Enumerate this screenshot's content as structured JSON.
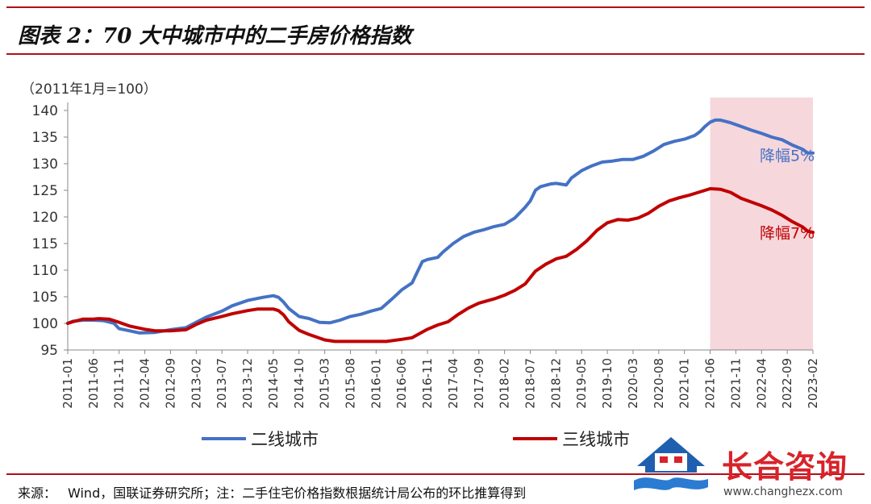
{
  "header": {
    "title": "图表 2：70 大中城市中的二手房价格指数",
    "unit_label": "（2011年1月=100）"
  },
  "footer": {
    "source_label": "来源：",
    "source_text": "Wind，国联证券研究所；注：二手住宅价格指数根据统计局公布的环比推算得到"
  },
  "watermark": {
    "brand": "长合咨询",
    "url": "www.changhezx.com",
    "icon": "house-handshake-icon"
  },
  "chart_data": {
    "type": "line",
    "title": "",
    "xlabel": "",
    "ylabel": "（2011年1月=100）",
    "ylim": [
      95,
      140
    ],
    "yticks": [
      95,
      100,
      105,
      110,
      115,
      120,
      125,
      130,
      135,
      140
    ],
    "x_start": "2011-01",
    "x_end": "2023-02",
    "x_ticks": [
      "2011-01",
      "2011-06",
      "2011-11",
      "2012-04",
      "2012-09",
      "2013-02",
      "2013-07",
      "2013-12",
      "2014-05",
      "2014-10",
      "2015-03",
      "2015-08",
      "2016-01",
      "2016-06",
      "2016-11",
      "2017-04",
      "2017-09",
      "2018-02",
      "2018-07",
      "2018-12",
      "2019-05",
      "2019-10",
      "2020-03",
      "2020-08",
      "2021-01",
      "2021-06",
      "2021-11",
      "2022-04",
      "2022-09",
      "2023-02"
    ],
    "legend_position": "bottom",
    "grid": false,
    "highlight": {
      "from": "2021-06",
      "to": "2023-02",
      "color": "#f6d7dc"
    },
    "annotations": [
      {
        "text": "降幅5%",
        "series": "二线城市",
        "color": "#4472c4",
        "x": "2022-09",
        "y": 130.5
      },
      {
        "text": "降幅7%",
        "series": "三线城市",
        "color": "#c00000",
        "x": "2022-09",
        "y": 116
      }
    ],
    "series": [
      {
        "name": "二线城市",
        "color": "#4472c4",
        "points": [
          [
            "2011-01",
            100.0
          ],
          [
            "2011-02",
            100.4
          ],
          [
            "2011-04",
            100.6
          ],
          [
            "2011-06",
            100.6
          ],
          [
            "2011-08",
            100.5
          ],
          [
            "2011-10",
            100.0
          ],
          [
            "2011-11",
            99.0
          ],
          [
            "2012-01",
            98.6
          ],
          [
            "2012-03",
            98.2
          ],
          [
            "2012-06",
            98.3
          ],
          [
            "2012-09",
            98.8
          ],
          [
            "2012-12",
            99.2
          ],
          [
            "2013-02",
            100.2
          ],
          [
            "2013-04",
            101.2
          ],
          [
            "2013-07",
            102.3
          ],
          [
            "2013-09",
            103.3
          ],
          [
            "2013-12",
            104.3
          ],
          [
            "2014-03",
            104.9
          ],
          [
            "2014-05",
            105.2
          ],
          [
            "2014-06",
            104.9
          ],
          [
            "2014-07",
            104.0
          ],
          [
            "2014-08",
            102.8
          ],
          [
            "2014-10",
            101.3
          ],
          [
            "2014-12",
            100.9
          ],
          [
            "2015-02",
            100.2
          ],
          [
            "2015-04",
            100.1
          ],
          [
            "2015-06",
            100.6
          ],
          [
            "2015-08",
            101.3
          ],
          [
            "2015-10",
            101.7
          ],
          [
            "2015-12",
            102.3
          ],
          [
            "2016-02",
            102.8
          ],
          [
            "2016-04",
            104.5
          ],
          [
            "2016-06",
            106.3
          ],
          [
            "2016-08",
            107.6
          ],
          [
            "2016-09",
            109.6
          ],
          [
            "2016-10",
            111.6
          ],
          [
            "2016-11",
            112.0
          ],
          [
            "2017-01",
            112.4
          ],
          [
            "2017-02",
            113.4
          ],
          [
            "2017-04",
            115.0
          ],
          [
            "2017-06",
            116.3
          ],
          [
            "2017-08",
            117.1
          ],
          [
            "2017-10",
            117.6
          ],
          [
            "2017-12",
            118.2
          ],
          [
            "2018-02",
            118.6
          ],
          [
            "2018-04",
            119.8
          ],
          [
            "2018-06",
            121.8
          ],
          [
            "2018-07",
            123.0
          ],
          [
            "2018-08",
            125.0
          ],
          [
            "2018-09",
            125.7
          ],
          [
            "2018-11",
            126.2
          ],
          [
            "2018-12",
            126.3
          ],
          [
            "2019-02",
            126.0
          ],
          [
            "2019-03",
            127.3
          ],
          [
            "2019-05",
            128.7
          ],
          [
            "2019-07",
            129.6
          ],
          [
            "2019-09",
            130.3
          ],
          [
            "2019-11",
            130.5
          ],
          [
            "2020-01",
            130.8
          ],
          [
            "2020-03",
            130.8
          ],
          [
            "2020-05",
            131.4
          ],
          [
            "2020-07",
            132.4
          ],
          [
            "2020-09",
            133.6
          ],
          [
            "2020-11",
            134.2
          ],
          [
            "2021-01",
            134.6
          ],
          [
            "2021-03",
            135.3
          ],
          [
            "2021-04",
            136.0
          ],
          [
            "2021-05",
            137.0
          ],
          [
            "2021-06",
            137.8
          ],
          [
            "2021-07",
            138.2
          ],
          [
            "2021-08",
            138.2
          ],
          [
            "2021-10",
            137.7
          ],
          [
            "2021-12",
            137.0
          ],
          [
            "2022-02",
            136.3
          ],
          [
            "2022-04",
            135.7
          ],
          [
            "2022-06",
            135.0
          ],
          [
            "2022-08",
            134.5
          ],
          [
            "2022-10",
            133.5
          ],
          [
            "2022-12",
            132.7
          ],
          [
            "2023-01",
            132.0
          ],
          [
            "2023-02",
            132.0
          ]
        ]
      },
      {
        "name": "三线城市",
        "color": "#c00000",
        "points": [
          [
            "2011-01",
            100.0
          ],
          [
            "2011-02",
            100.3
          ],
          [
            "2011-04",
            100.8
          ],
          [
            "2011-06",
            100.8
          ],
          [
            "2011-07",
            100.9
          ],
          [
            "2011-09",
            100.8
          ],
          [
            "2011-11",
            100.2
          ],
          [
            "2012-01",
            99.5
          ],
          [
            "2012-04",
            98.9
          ],
          [
            "2012-06",
            98.6
          ],
          [
            "2012-09",
            98.6
          ],
          [
            "2012-12",
            98.8
          ],
          [
            "2013-02",
            99.8
          ],
          [
            "2013-04",
            100.6
          ],
          [
            "2013-07",
            101.3
          ],
          [
            "2013-09",
            101.8
          ],
          [
            "2013-12",
            102.4
          ],
          [
            "2014-02",
            102.7
          ],
          [
            "2014-05",
            102.7
          ],
          [
            "2014-06",
            102.4
          ],
          [
            "2014-07",
            101.6
          ],
          [
            "2014-08",
            100.3
          ],
          [
            "2014-10",
            98.7
          ],
          [
            "2014-12",
            97.9
          ],
          [
            "2015-03",
            96.9
          ],
          [
            "2015-05",
            96.6
          ],
          [
            "2015-08",
            96.6
          ],
          [
            "2015-12",
            96.6
          ],
          [
            "2016-03",
            96.6
          ],
          [
            "2016-06",
            97.0
          ],
          [
            "2016-08",
            97.3
          ],
          [
            "2016-11",
            98.9
          ],
          [
            "2017-01",
            99.7
          ],
          [
            "2017-03",
            100.3
          ],
          [
            "2017-05",
            101.7
          ],
          [
            "2017-07",
            102.9
          ],
          [
            "2017-09",
            103.8
          ],
          [
            "2017-12",
            104.6
          ],
          [
            "2018-02",
            105.3
          ],
          [
            "2018-04",
            106.2
          ],
          [
            "2018-06",
            107.4
          ],
          [
            "2018-08",
            109.8
          ],
          [
            "2018-10",
            111.1
          ],
          [
            "2018-12",
            112.1
          ],
          [
            "2019-02",
            112.6
          ],
          [
            "2019-04",
            113.9
          ],
          [
            "2019-06",
            115.5
          ],
          [
            "2019-08",
            117.5
          ],
          [
            "2019-10",
            118.9
          ],
          [
            "2019-12",
            119.5
          ],
          [
            "2020-02",
            119.4
          ],
          [
            "2020-04",
            119.8
          ],
          [
            "2020-06",
            120.7
          ],
          [
            "2020-08",
            122.0
          ],
          [
            "2020-10",
            123.0
          ],
          [
            "2020-12",
            123.6
          ],
          [
            "2021-02",
            124.1
          ],
          [
            "2021-04",
            124.7
          ],
          [
            "2021-06",
            125.3
          ],
          [
            "2021-08",
            125.2
          ],
          [
            "2021-10",
            124.6
          ],
          [
            "2021-12",
            123.5
          ],
          [
            "2022-02",
            122.8
          ],
          [
            "2022-04",
            122.1
          ],
          [
            "2022-06",
            121.3
          ],
          [
            "2022-08",
            120.3
          ],
          [
            "2022-10",
            119.1
          ],
          [
            "2022-12",
            118.1
          ],
          [
            "2023-01",
            117.3
          ],
          [
            "2023-02",
            117.1
          ]
        ]
      }
    ]
  }
}
